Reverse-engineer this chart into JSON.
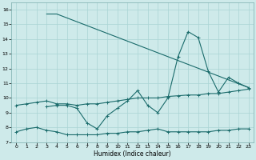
{
  "xlabel": "Humidex (Indice chaleur)",
  "xlim": [
    -0.5,
    23.5
  ],
  "ylim": [
    7,
    16.5
  ],
  "xticks": [
    0,
    1,
    2,
    3,
    4,
    5,
    6,
    7,
    8,
    9,
    10,
    11,
    12,
    13,
    14,
    15,
    16,
    17,
    18,
    19,
    20,
    21,
    22,
    23
  ],
  "yticks": [
    7,
    8,
    9,
    10,
    11,
    12,
    13,
    14,
    15,
    16
  ],
  "bg_color": "#ceeaea",
  "grid_color": "#aad4d4",
  "line_color": "#1a6b6b",
  "line1_x": [
    0,
    1,
    2,
    3,
    4,
    5,
    6,
    7,
    8,
    9,
    10,
    11,
    12,
    13,
    14,
    15,
    16,
    17,
    18,
    19,
    20,
    21,
    22,
    23
  ],
  "line1_y": [
    7.7,
    7.9,
    8.0,
    7.8,
    7.7,
    7.5,
    7.5,
    7.5,
    7.5,
    7.6,
    7.6,
    7.7,
    7.7,
    7.8,
    7.9,
    7.7,
    7.7,
    7.7,
    7.7,
    7.7,
    7.8,
    7.8,
    7.9,
    7.9
  ],
  "line2_x": [
    3,
    4,
    5,
    6,
    7,
    8,
    9,
    10,
    11,
    12,
    13,
    14,
    15,
    16,
    17,
    18,
    19,
    20,
    21,
    22,
    23
  ],
  "line2_y": [
    9.4,
    9.5,
    9.5,
    9.3,
    8.3,
    7.9,
    8.8,
    9.3,
    9.8,
    10.5,
    9.5,
    9.0,
    10.0,
    12.8,
    14.5,
    14.1,
    11.8,
    10.4,
    11.4,
    11.0,
    10.7
  ],
  "line3_x": [
    0,
    1,
    2,
    3,
    4,
    5,
    6,
    7,
    8,
    9,
    10,
    11,
    12,
    13,
    14,
    15,
    16,
    17,
    18,
    19,
    20,
    21,
    22,
    23
  ],
  "line3_y": [
    9.5,
    9.6,
    9.7,
    9.8,
    9.6,
    9.6,
    9.5,
    9.6,
    9.6,
    9.7,
    9.8,
    9.9,
    10.0,
    10.0,
    10.0,
    10.1,
    10.15,
    10.2,
    10.2,
    10.3,
    10.3,
    10.4,
    10.5,
    10.6
  ],
  "line4_x": [
    3,
    4,
    23
  ],
  "line4_y": [
    15.7,
    15.7,
    10.7
  ]
}
